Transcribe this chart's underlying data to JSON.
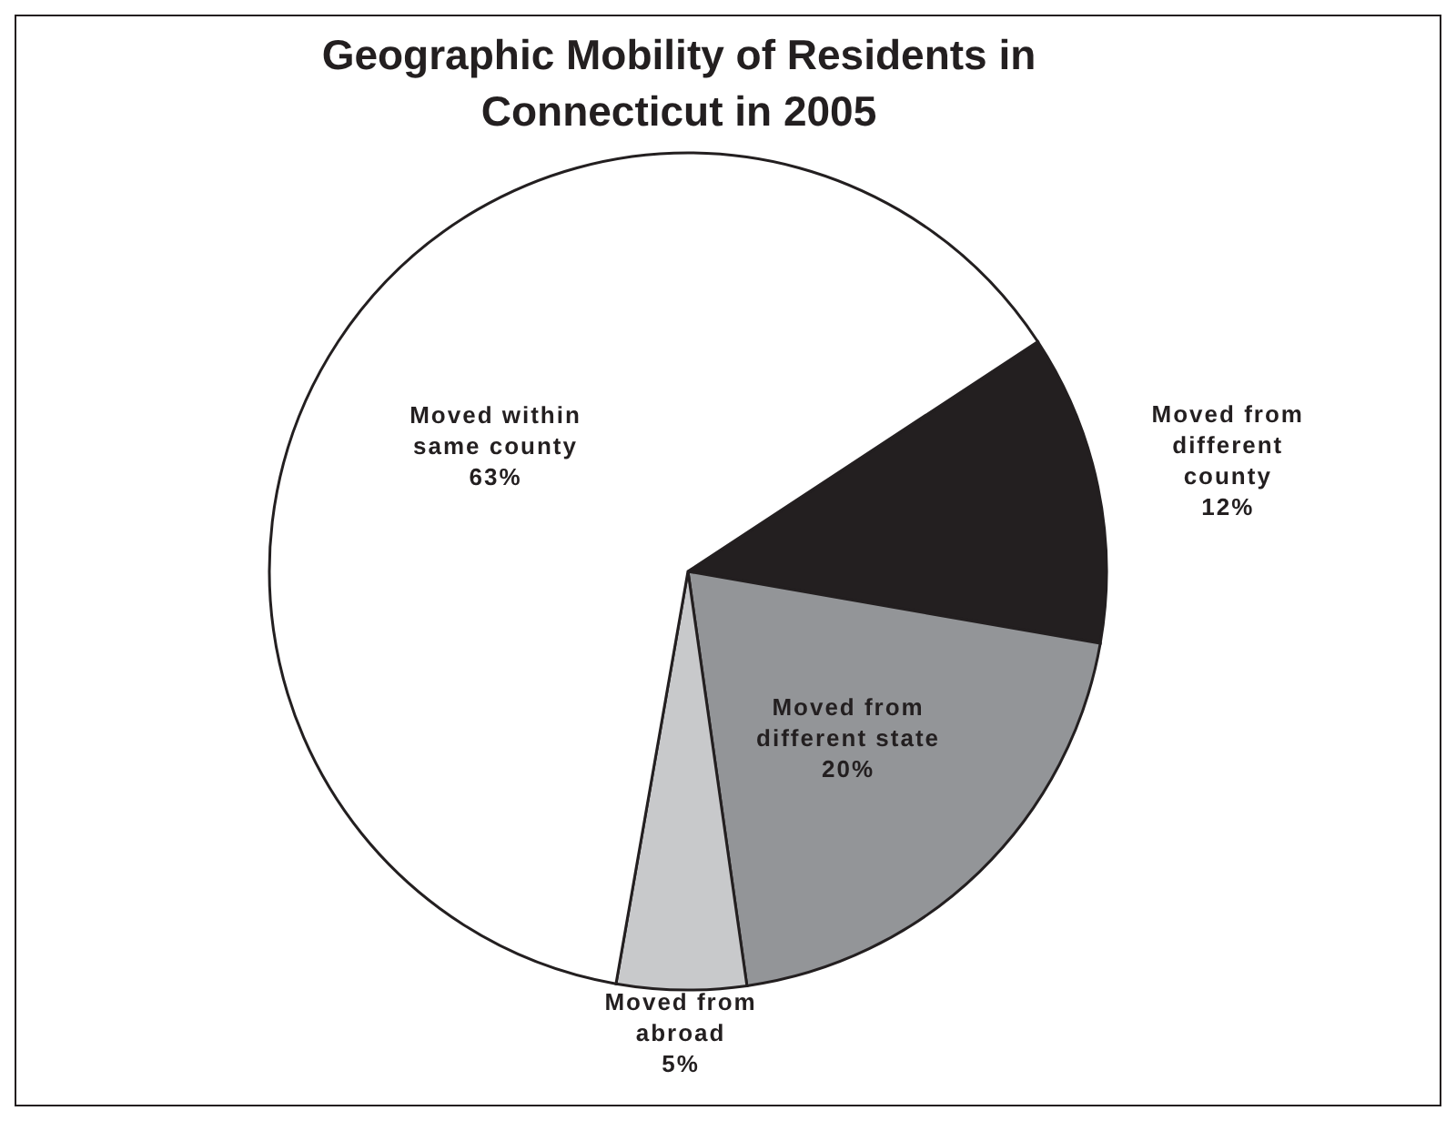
{
  "chart_data": {
    "type": "pie",
    "title": "Geographic Mobility of Residents in Connecticut in 2005",
    "categories": [
      "Moved from different county",
      "Moved from different state",
      "Moved from abroad",
      "Moved within same county"
    ],
    "values": [
      12,
      20,
      5,
      63
    ],
    "colors": [
      "#231f20",
      "#939598",
      "#c8c9cb",
      "#ffffff"
    ],
    "value_labels": [
      "12%",
      "20%",
      "5%",
      "63%"
    ],
    "legend": false
  }
}
